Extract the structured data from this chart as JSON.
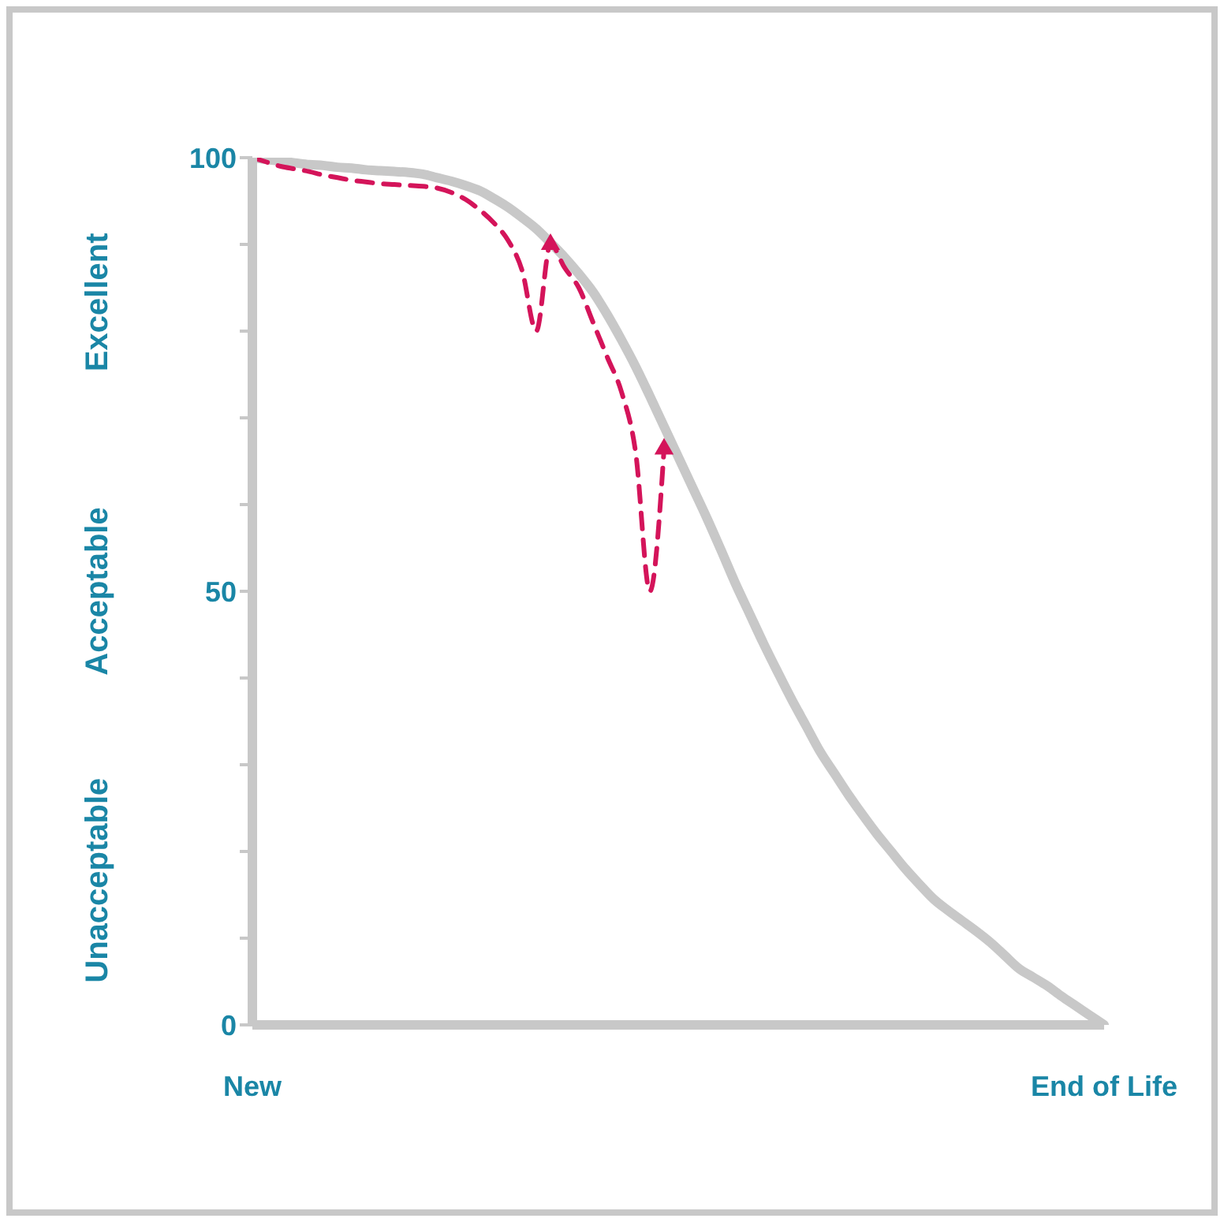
{
  "chart_data": {
    "type": "line",
    "categories": [
      "New",
      null,
      null,
      null,
      null,
      null,
      null,
      null,
      null,
      null,
      null,
      null,
      null,
      null,
      null,
      null,
      null,
      null,
      null,
      null,
      null,
      null,
      null,
      null,
      null,
      null,
      null,
      null,
      null,
      null,
      null,
      null,
      null,
      null,
      null,
      null,
      null,
      null,
      null,
      null,
      null,
      null,
      null,
      null,
      null,
      null,
      null,
      null,
      null,
      null,
      null,
      null,
      null,
      null,
      null,
      null,
      null,
      null,
      null,
      null,
      "End of Life"
    ],
    "ylim": [
      0,
      100
    ],
    "yticks": [
      0,
      {
        "value": 10,
        "label": null
      },
      {
        "value": 20,
        "label": null
      },
      {
        "value": 30,
        "label": null
      },
      {
        "value": 40,
        "label": null
      },
      50,
      {
        "value": 60,
        "label": null
      },
      {
        "value": 70,
        "label": null
      },
      {
        "value": 80,
        "label": null
      },
      {
        "value": 90,
        "label": null
      },
      100
    ],
    "annotations": [
      "Excellent",
      "Acceptable",
      "Unacceptable"
    ],
    "series": [
      {
        "color": "#c8c8c8",
        "line_style": "solid",
        "values": [
          100,
          99.8,
          99.6,
          99.4,
          99.2,
          99.1,
          98.9,
          98.8,
          98.6,
          98.5,
          98.4,
          98.3,
          98.1,
          97.7,
          97.3,
          96.8,
          96.2,
          95.3,
          94.3,
          93.1,
          91.8,
          90.2,
          88.5,
          86.6,
          84.5,
          81.9,
          79,
          75.9,
          72.5,
          69,
          65.5,
          62,
          58.5,
          54.8,
          51,
          47.5,
          44,
          40.7,
          37.5,
          34.5,
          31.5,
          29,
          26.5,
          24.2,
          22,
          20,
          18,
          16.2,
          14.5,
          13.2,
          12,
          10.8,
          9.5,
          8,
          6.5,
          5.5,
          4.5,
          3.3,
          2.2,
          1.1,
          0
        ]
      },
      {
        "color": "#d4145a",
        "line_style": "dashed",
        "values": [
          100,
          99.5,
          99,
          98.7,
          98.4,
          98,
          97.7,
          97.4,
          97.2,
          97,
          96.9,
          96.8,
          96.7,
          96.5,
          96,
          95.2,
          94,
          92.5,
          90.5,
          87,
          80,
          90,
          87.3,
          85,
          81,
          77,
          73,
          66,
          50,
          66.4,
          null,
          null,
          null,
          null,
          null,
          null,
          null,
          null,
          null,
          null,
          null,
          null,
          null,
          null,
          null,
          null,
          null,
          null,
          null,
          null,
          null,
          null,
          null,
          null,
          null,
          null,
          null,
          null,
          null,
          null,
          null
        ]
      },
      {
        "type": "scatter",
        "color": "#d4145a",
        "marker": "triangle",
        "values": [
          null,
          null,
          null,
          null,
          null,
          null,
          null,
          null,
          null,
          null,
          null,
          null,
          null,
          null,
          null,
          null,
          null,
          null,
          null,
          null,
          null,
          90,
          null,
          null,
          null,
          null,
          null,
          null,
          null,
          66.4,
          null,
          null,
          null,
          null,
          null,
          null,
          null,
          null,
          null,
          null,
          null,
          null,
          null,
          null,
          null,
          null,
          null,
          null,
          null,
          null,
          null,
          null,
          null,
          null,
          null,
          null,
          null,
          null,
          null,
          null,
          null
        ]
      }
    ]
  }
}
